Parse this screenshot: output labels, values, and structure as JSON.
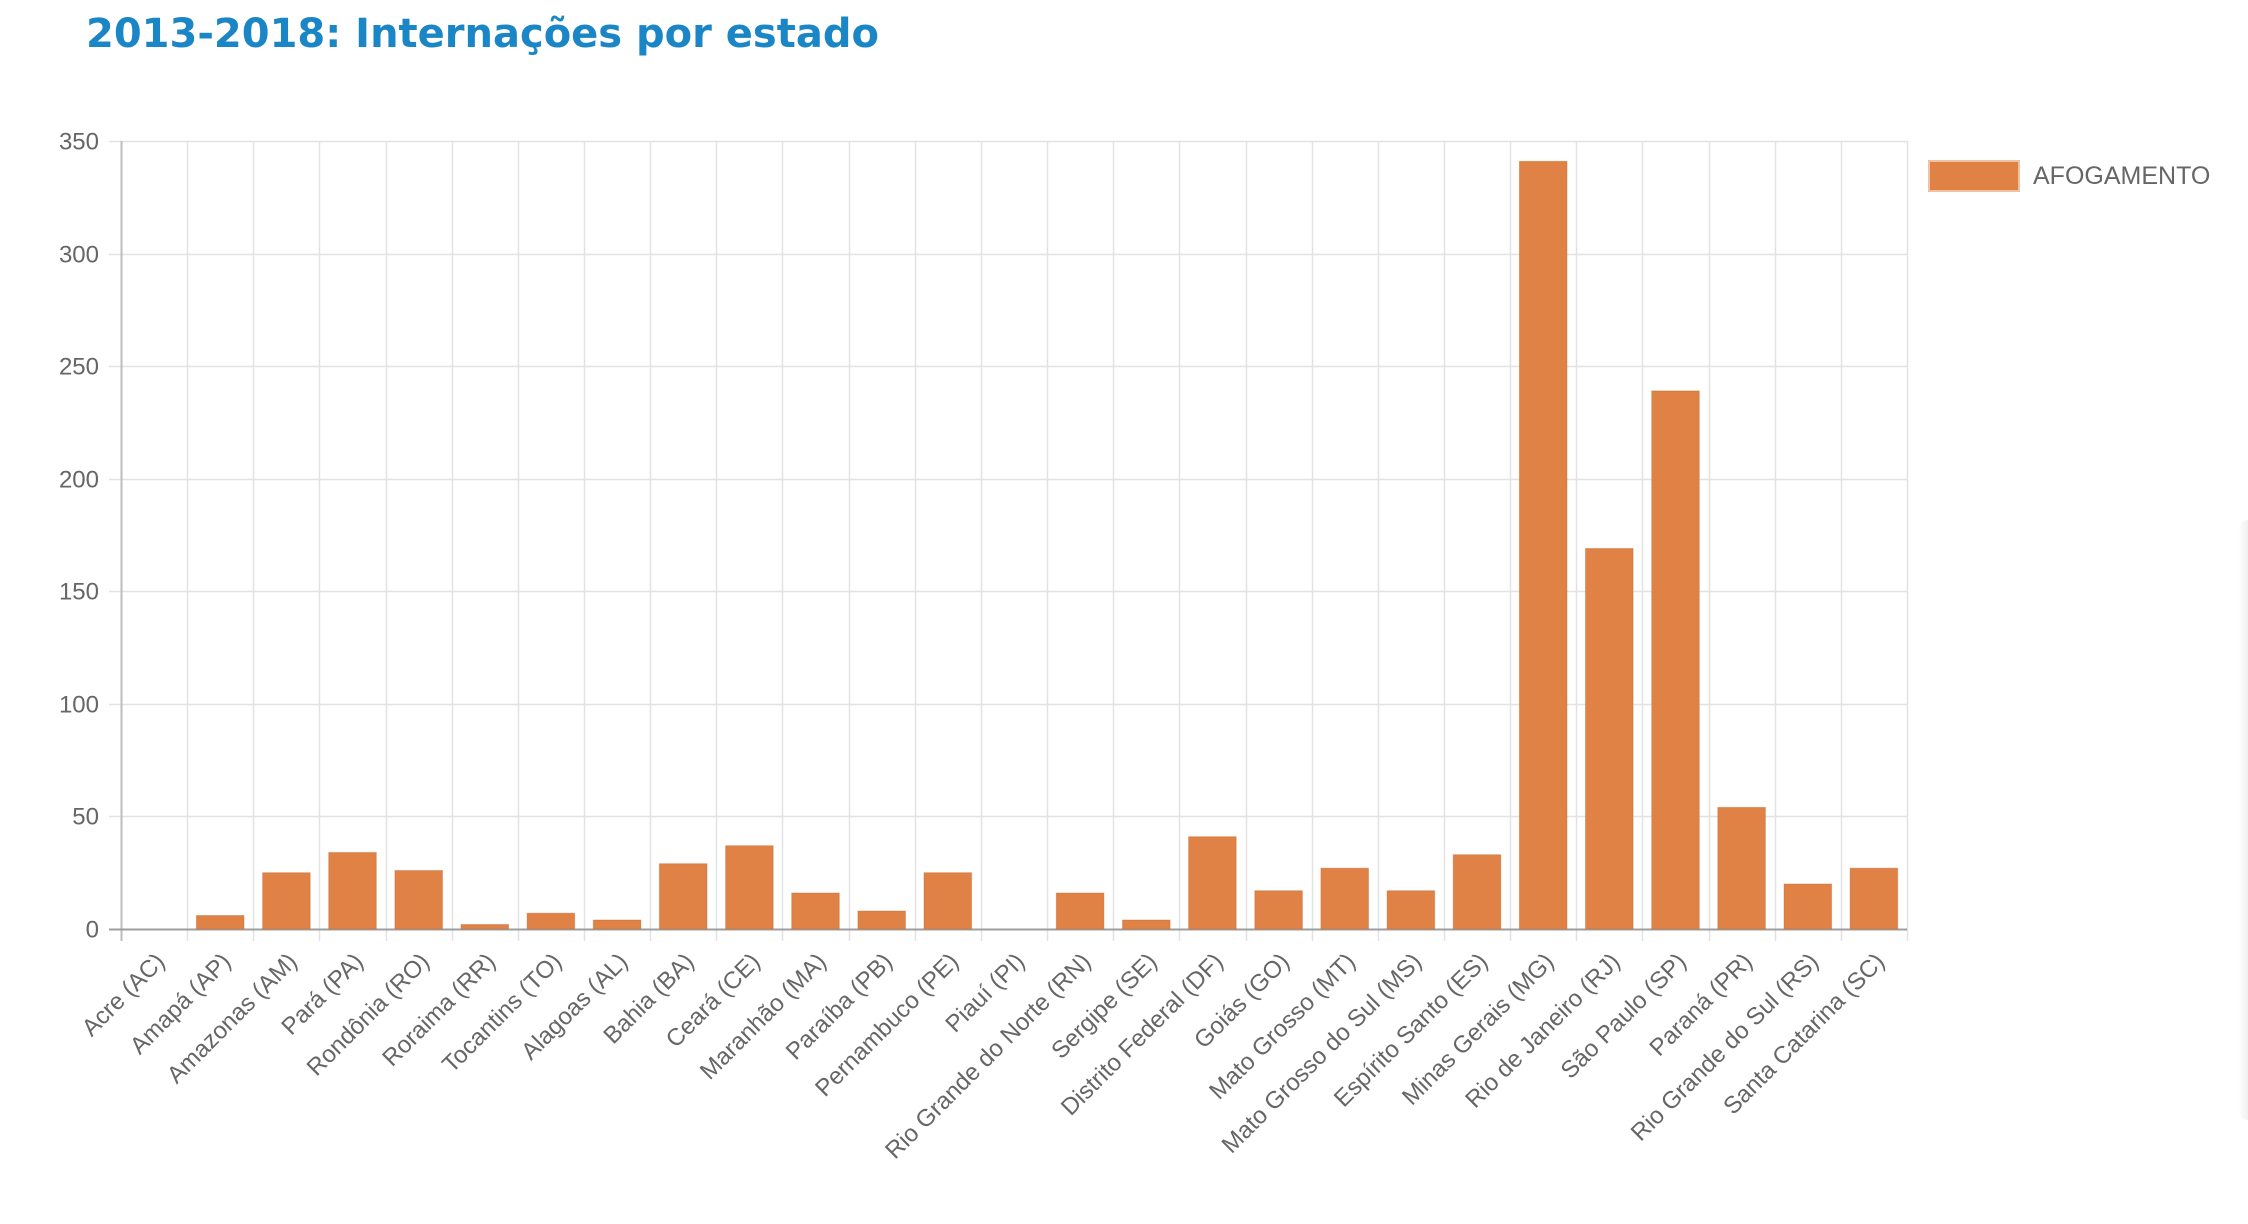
{
  "header": {
    "title": "2013-2018: Internações por estado"
  },
  "chart_data": {
    "type": "bar",
    "categories": [
      "Acre (AC)",
      "Amapá (AP)",
      "Amazonas (AM)",
      "Pará (PA)",
      "Rondônia (RO)",
      "Roraima (RR)",
      "Tocantins (TO)",
      "Alagoas (AL)",
      "Bahia (BA)",
      "Ceará (CE)",
      "Maranhão (MA)",
      "Paraíba (PB)",
      "Pernambuco (PE)",
      "Piauí (PI)",
      "Rio Grande do Norte (RN)",
      "Sergipe (SE)",
      "Distrito Federal (DF)",
      "Goiás (GO)",
      "Mato Grosso (MT)",
      "Mato Grosso do Sul (MS)",
      "Espírito Santo (ES)",
      "Minas Gerais (MG)",
      "Rio de Janeiro (RJ)",
      "São Paulo (SP)",
      "Paraná (PR)",
      "Rio Grande do Sul (RS)",
      "Santa Catarina (SC)"
    ],
    "series": [
      {
        "name": "AFOGAMENTO",
        "color": "#e08245",
        "values": [
          0,
          6,
          25,
          34,
          26,
          2,
          7,
          4,
          29,
          37,
          16,
          8,
          25,
          0,
          16,
          4,
          41,
          17,
          27,
          17,
          33,
          341,
          169,
          239,
          54,
          20,
          27
        ]
      }
    ],
    "ylim": [
      0,
      350
    ],
    "yticks": [
      0,
      50,
      100,
      150,
      200,
      250,
      300,
      350
    ],
    "grid": true,
    "legend": "top-right",
    "title": "",
    "xlabel": "",
    "ylabel": ""
  }
}
